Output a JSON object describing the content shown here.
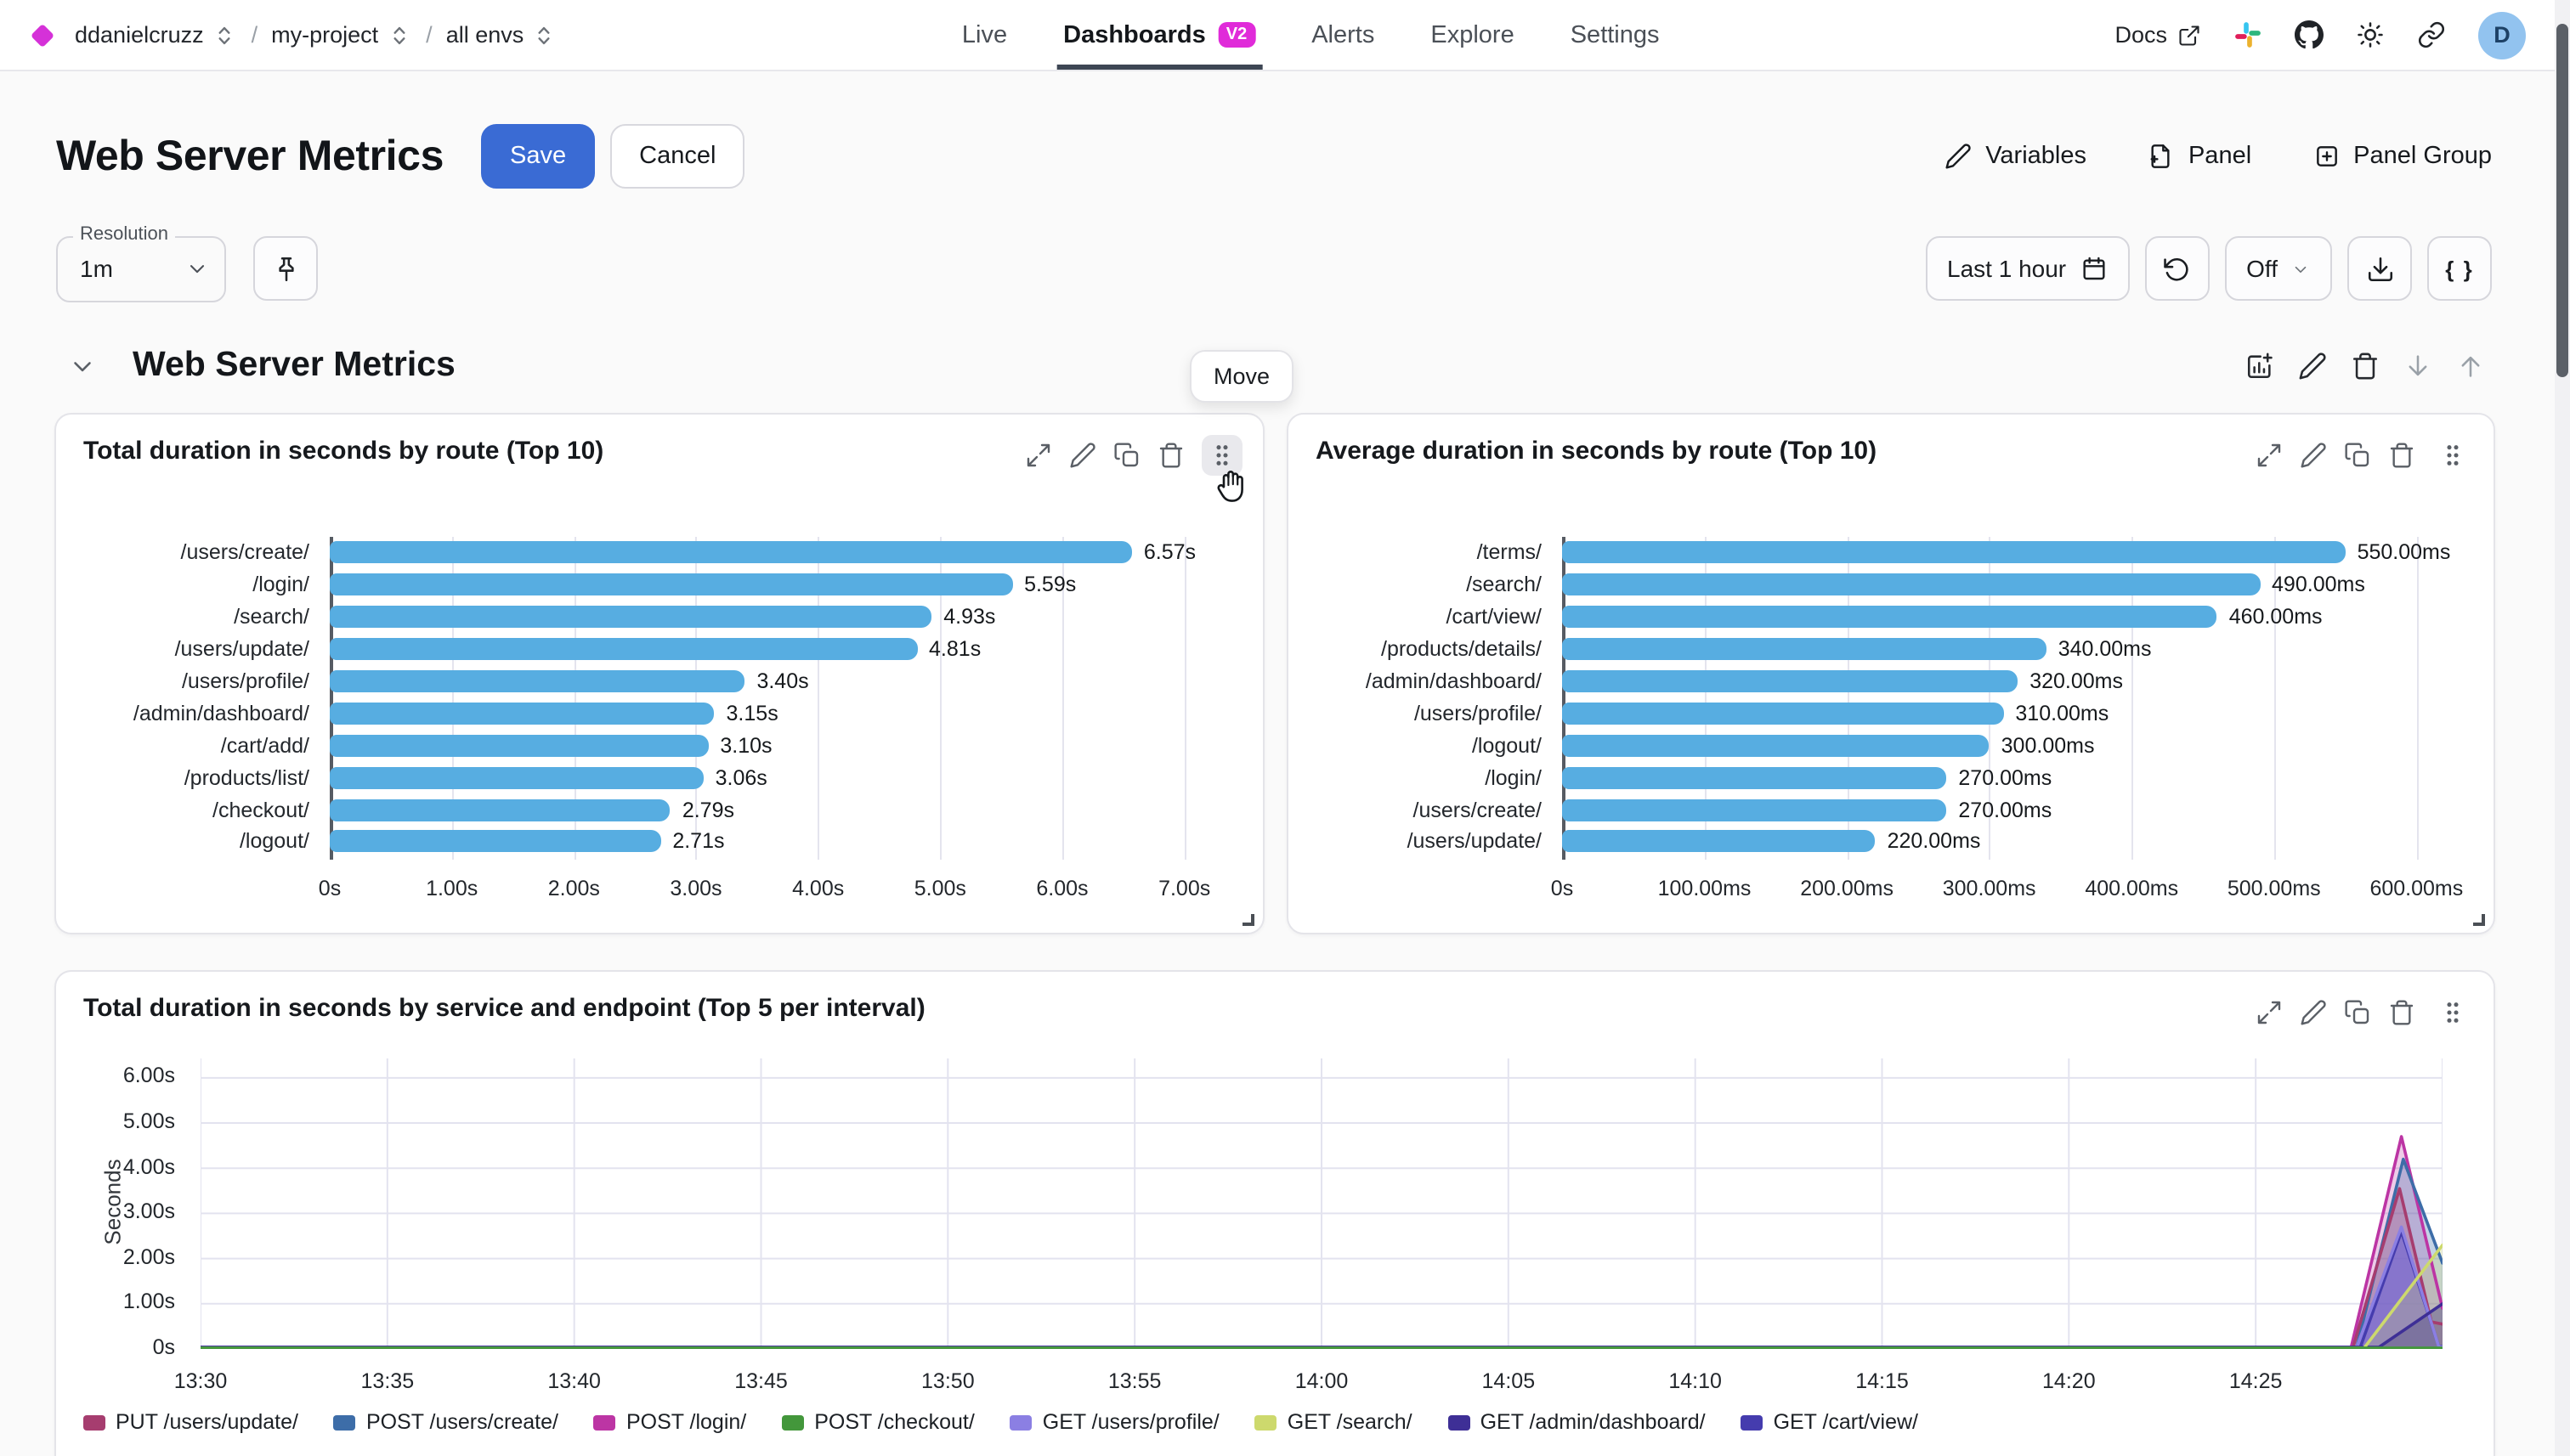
{
  "topbar": {
    "breadcrumb": {
      "org": "ddanielcruzz",
      "project": "my-project",
      "env": "all envs",
      "separator": "/"
    },
    "nav": [
      {
        "label": "Live"
      },
      {
        "label": "Dashboards",
        "badge": "V2"
      },
      {
        "label": "Alerts"
      },
      {
        "label": "Explore"
      },
      {
        "label": "Settings"
      }
    ],
    "docs_label": "Docs",
    "avatar_initial": "D"
  },
  "header": {
    "title": "Web Server Metrics",
    "save_label": "Save",
    "cancel_label": "Cancel",
    "variables_label": "Variables",
    "panel_label": "Panel",
    "panel_group_label": "Panel Group"
  },
  "controls": {
    "resolution_label": "Resolution",
    "resolution_value": "1m",
    "time_range": "Last 1 hour",
    "refresh_interval": "Off",
    "braces_label": "{ }"
  },
  "section": {
    "title": "Web Server Metrics",
    "move_tooltip": "Move"
  },
  "colors": {
    "accent_blue": "#3a6bd4",
    "bar_blue": "#57ade1",
    "badge_magenta": "#e02bd9",
    "brand_magenta": "#d531d8",
    "avatar_bg": "#92c3ef"
  },
  "chart_data": [
    {
      "id": "total-duration-by-route",
      "type": "bar",
      "orientation": "horizontal",
      "title": "Total duration in seconds by route (Top 10)",
      "categories": [
        "/users/create/",
        "/login/",
        "/search/",
        "/users/update/",
        "/users/profile/",
        "/admin/dashboard/",
        "/cart/add/",
        "/products/list/",
        "/checkout/",
        "/logout/"
      ],
      "values": [
        6.57,
        5.59,
        4.93,
        4.81,
        3.4,
        3.15,
        3.1,
        3.06,
        2.79,
        2.71
      ],
      "value_labels": [
        "6.57s",
        "5.59s",
        "4.93s",
        "4.81s",
        "3.40s",
        "3.15s",
        "3.10s",
        "3.06s",
        "2.79s",
        "2.71s"
      ],
      "xticks": {
        "values": [
          0,
          1,
          2,
          3,
          4,
          5,
          6,
          7
        ],
        "labels": [
          "0s",
          "1.00s",
          "2.00s",
          "3.00s",
          "4.00s",
          "5.00s",
          "6.00s",
          "7.00s"
        ]
      },
      "xlim": [
        0,
        7.42
      ],
      "bar_color": "#57ade1"
    },
    {
      "id": "average-duration-by-route",
      "type": "bar",
      "orientation": "horizontal",
      "title": "Average duration in seconds by route (Top 10)",
      "categories": [
        "/terms/",
        "/search/",
        "/cart/view/",
        "/products/details/",
        "/admin/dashboard/",
        "/users/profile/",
        "/logout/",
        "/login/",
        "/users/create/",
        "/users/update/"
      ],
      "values": [
        550,
        490,
        460,
        340,
        320,
        310,
        300,
        270,
        270,
        220
      ],
      "value_labels": [
        "550.00ms",
        "490.00ms",
        "460.00ms",
        "340.00ms",
        "320.00ms",
        "310.00ms",
        "300.00ms",
        "270.00ms",
        "270.00ms",
        "220.00ms"
      ],
      "xticks": {
        "values": [
          0,
          100,
          200,
          300,
          400,
          500,
          600
        ],
        "labels": [
          "0s",
          "100.00ms",
          "200.00ms",
          "300.00ms",
          "400.00ms",
          "500.00ms",
          "600.00ms"
        ]
      },
      "xlim": [
        0,
        635
      ],
      "bar_color": "#57ade1"
    },
    {
      "id": "total-duration-by-service-endpoint",
      "type": "area",
      "title": "Total duration in seconds by service and endpoint (Top 5 per interval)",
      "ylabel": "Seconds",
      "yticks": {
        "values": [
          0,
          1,
          2,
          3,
          4,
          5,
          6
        ],
        "labels": [
          "0s",
          "1.00s",
          "2.00s",
          "3.00s",
          "4.00s",
          "5.00s",
          "6.00s"
        ]
      },
      "ylim": [
        0,
        6.43
      ],
      "xticks": {
        "values": [
          0,
          5,
          10,
          15,
          20,
          25,
          30,
          35,
          40,
          45,
          50,
          55
        ],
        "labels": [
          "13:30",
          "13:35",
          "13:40",
          "13:45",
          "13:50",
          "13:55",
          "14:00",
          "14:05",
          "14:10",
          "14:15",
          "14:20",
          "14:25"
        ]
      },
      "x_gridlines": [
        0,
        5,
        10,
        15,
        20,
        25,
        30,
        35,
        40,
        45,
        50,
        55,
        60
      ],
      "xlim": [
        0,
        60
      ],
      "x_unit": "minutes since 13:30",
      "series": [
        {
          "name": "PUT /users/update/",
          "color": "#a63d6f",
          "fill_opacity": 0.25,
          "points": [
            [
              0,
              0.02
            ],
            [
              57.6,
              0.02
            ],
            [
              58.85,
              3.55
            ],
            [
              59.7,
              0.6
            ],
            [
              60,
              0.55
            ]
          ]
        },
        {
          "name": "POST /users/create/",
          "color": "#3d6da8",
          "fill_opacity": 0.3,
          "points": [
            [
              0,
              0.03
            ],
            [
              57.7,
              0.03
            ],
            [
              58.95,
              4.2
            ],
            [
              60,
              1.9
            ]
          ]
        },
        {
          "name": "POST /login/",
          "color": "#bc35a4",
          "fill_opacity": 0.25,
          "points": [
            [
              0,
              0.02
            ],
            [
              57.55,
              0.02
            ],
            [
              58.9,
              4.7
            ],
            [
              60,
              0.9
            ]
          ]
        },
        {
          "name": "POST /checkout/",
          "color": "#43973b",
          "fill_opacity": 0,
          "points": [
            [
              0,
              0.02
            ],
            [
              60,
              0.02
            ]
          ]
        },
        {
          "name": "GET /users/profile/",
          "color": "#8b7fe3",
          "fill_opacity": 0.5,
          "points": [
            [
              0,
              0.03
            ],
            [
              57.7,
              0.03
            ],
            [
              58.9,
              2.7
            ],
            [
              59.9,
              0.05
            ],
            [
              60,
              0.04
            ]
          ]
        },
        {
          "name": "GET /search/",
          "color": "#cdd96d",
          "fill_opacity": 0.25,
          "points": [
            [
              0,
              0.02
            ],
            [
              57.9,
              0.02
            ],
            [
              60,
              2.3
            ]
          ]
        },
        {
          "name": "GET /admin/dashboard/",
          "color": "#3e2f96",
          "fill_opacity": 0.5,
          "points": [
            [
              0,
              0.04
            ],
            [
              58.3,
              0.04
            ],
            [
              60,
              1.0
            ]
          ]
        },
        {
          "name": "GET /cart/view/",
          "color": "#453cae",
          "fill_opacity": 0.45,
          "points": [
            [
              0,
              0.04
            ],
            [
              57.8,
              0.04
            ],
            [
              58.9,
              2.6
            ],
            [
              59.9,
              0.06
            ],
            [
              60,
              0.05
            ]
          ]
        }
      ],
      "draw_order": [
        2,
        1,
        0,
        7,
        4,
        6,
        5,
        3
      ]
    }
  ]
}
